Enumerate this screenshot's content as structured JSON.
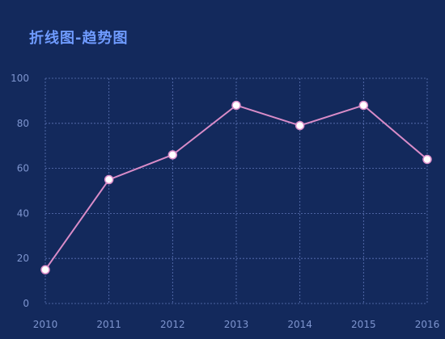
{
  "chart_data": {
    "type": "line",
    "title": "折线图-趋势图",
    "categories": [
      "2010",
      "2011",
      "2012",
      "2013",
      "2014",
      "2015",
      "2016"
    ],
    "values": [
      15,
      55,
      66,
      88,
      79,
      88,
      64
    ],
    "xlabel": "",
    "ylabel": "",
    "ylim": [
      0,
      100
    ],
    "yticks": [
      "0",
      "20",
      "40",
      "60",
      "80",
      "100"
    ],
    "grid": true,
    "grid_style": "dashed",
    "line_color": "#d98cc8",
    "marker_fill": "#ffffff",
    "marker_stroke": "#d98cc8",
    "grid_color": "#5f76b8",
    "tick_color": "#7e95cf",
    "title_color": "#6f9bff",
    "background": "#13295c"
  }
}
